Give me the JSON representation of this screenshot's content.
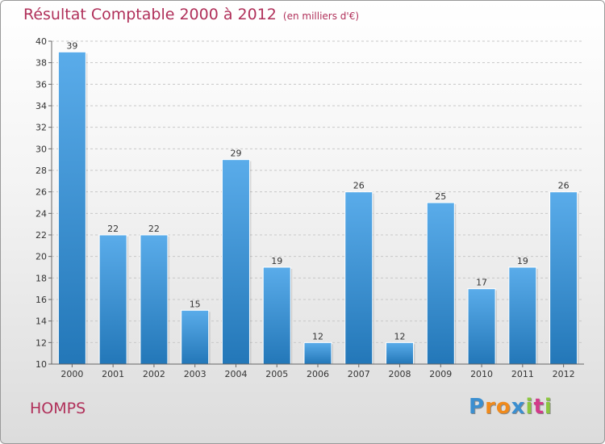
{
  "chart_data": {
    "type": "bar",
    "title": "Résultat Comptable 2000 à 2012",
    "subtitle": "(en milliers d'€)",
    "categories": [
      "2000",
      "2001",
      "2002",
      "2003",
      "2004",
      "2005",
      "2006",
      "2007",
      "2008",
      "2009",
      "2010",
      "2011",
      "2012"
    ],
    "values": [
      39,
      22,
      22,
      15,
      29,
      19,
      12,
      26,
      12,
      25,
      17,
      19,
      26
    ],
    "ylim": [
      10,
      40
    ],
    "yticks": [
      10,
      12,
      14,
      16,
      18,
      20,
      22,
      24,
      26,
      28,
      30,
      32,
      34,
      36,
      38,
      40
    ],
    "xlabel": "",
    "ylabel": "",
    "grid": true,
    "bar_color_top": "#5aacea",
    "bar_color_bottom": "#2377b8"
  },
  "commune": "HOMPS",
  "brand": {
    "letters": [
      "P",
      "r",
      "o",
      "x",
      "i",
      "t",
      "i"
    ],
    "colors": [
      "#3b8fd0",
      "#f08a1c",
      "#f08a1c",
      "#3b8fd0",
      "#8cc63f",
      "#d23a8a",
      "#8cc63f"
    ]
  }
}
